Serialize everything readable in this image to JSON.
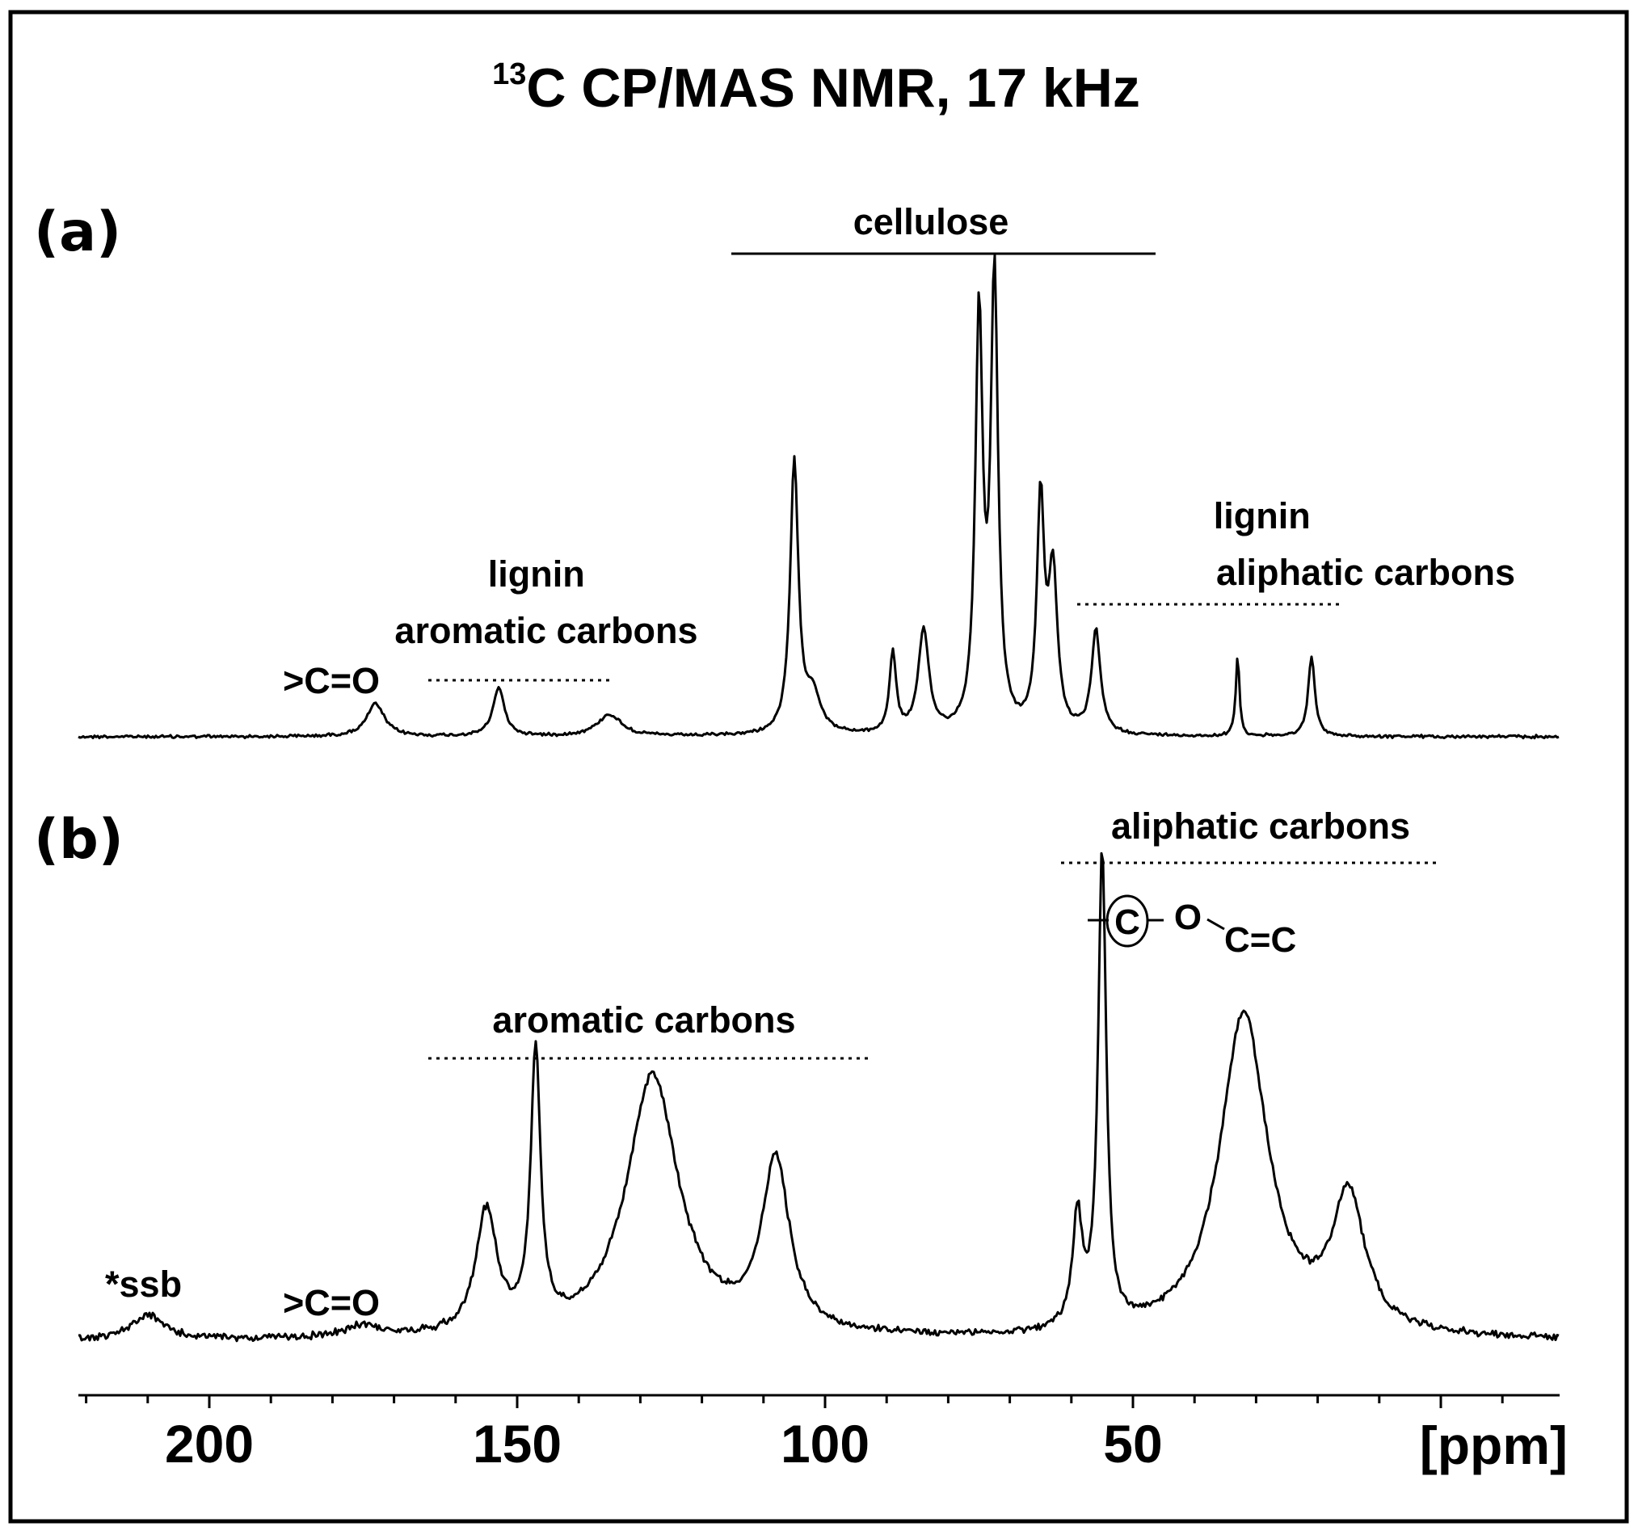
{
  "chart_data": {
    "type": "line",
    "title": {
      "sup": "13",
      "main": "C CP/MAS NMR, 17 kHz"
    },
    "x_axis": {
      "unit_label": "[ppm]",
      "ticks": [
        200,
        150,
        100,
        50
      ],
      "range": [
        220,
        100
      ],
      "reversed": true
    },
    "spectra": [
      {
        "panel_label": "(a)",
        "peaks": [
          {
            "ppm": 173,
            "height": 0.06,
            "width": 2.2
          },
          {
            "ppm": 153,
            "height": 0.09,
            "width": 1.4
          },
          {
            "ppm": 135,
            "height": 0.04,
            "width": 3.0
          },
          {
            "ppm": 105,
            "height": 0.5,
            "width": 1.0
          },
          {
            "ppm": 102,
            "height": 0.07,
            "width": 2.0
          },
          {
            "ppm": 89,
            "height": 0.15,
            "width": 0.8
          },
          {
            "ppm": 84,
            "height": 0.19,
            "width": 1.3
          },
          {
            "ppm": 75,
            "height": 0.76,
            "width": 0.9
          },
          {
            "ppm": 72.5,
            "height": 0.83,
            "width": 0.9
          },
          {
            "ppm": 65,
            "height": 0.42,
            "width": 0.9
          },
          {
            "ppm": 63,
            "height": 0.29,
            "width": 1.1
          },
          {
            "ppm": 56,
            "height": 0.19,
            "width": 1.1
          },
          {
            "ppm": 33,
            "height": 0.15,
            "width": 0.45
          },
          {
            "ppm": 21,
            "height": 0.15,
            "width": 0.8
          }
        ],
        "annotations": [
          {
            "text": "cellulose",
            "range_ppm": [
              115,
              46
            ],
            "line": "solid"
          },
          {
            "text": [
              "lignin",
              "aromatic carbons"
            ],
            "range_ppm": [
              163,
              133
            ],
            "line": "dotted"
          },
          {
            "text": ">C=O",
            "ppm": 177
          },
          {
            "text": [
              "lignin",
              "aliphatic carbons"
            ],
            "range_ppm": [
              60,
              17
            ],
            "line": "dotted"
          }
        ]
      },
      {
        "panel_label": "(b)",
        "peaks": [
          {
            "ppm": 210,
            "height": 0.04,
            "width": 4.0
          },
          {
            "ppm": 175,
            "height": 0.02,
            "width": 4.0
          },
          {
            "ppm": 147,
            "height": 0.45,
            "width": 1.2
          },
          {
            "ppm": 155,
            "height": 0.2,
            "width": 2.6
          },
          {
            "ppm": 128,
            "height": 0.43,
            "width": 6.5
          },
          {
            "ppm": 108,
            "height": 0.28,
            "width": 3.4
          },
          {
            "ppm": 55,
            "height": 0.78,
            "width": 1.0
          },
          {
            "ppm": 59,
            "height": 0.18,
            "width": 1.2
          },
          {
            "ppm": 32,
            "height": 0.53,
            "width": 6.0
          },
          {
            "ppm": 15,
            "height": 0.22,
            "width": 4.0
          }
        ],
        "annotations": [
          {
            "text": "aliphatic carbons",
            "range_ppm": [
              60,
              -1
            ],
            "line": "dotted"
          },
          {
            "text": "aromatic carbons",
            "range_ppm": [
              163,
              91
            ],
            "line": "dotted"
          },
          {
            "text": "*ssb",
            "ppm": 208
          },
          {
            "text": ">C=O",
            "ppm": 177
          },
          {
            "structure": [
              "C",
              "O",
              "C=C"
            ]
          }
        ]
      }
    ]
  }
}
